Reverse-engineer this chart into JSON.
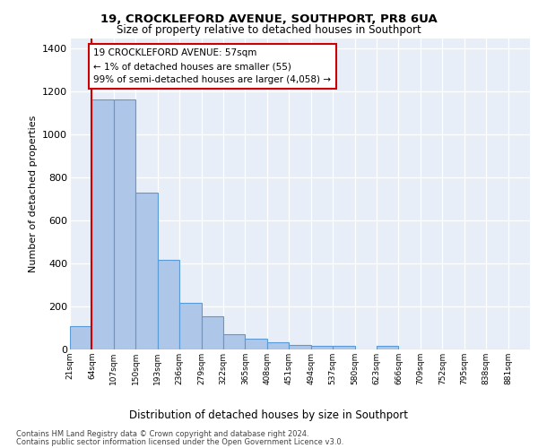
{
  "title1": "19, CROCKLEFORD AVENUE, SOUTHPORT, PR8 6UA",
  "title2": "Size of property relative to detached houses in Southport",
  "xlabel": "Distribution of detached houses by size in Southport",
  "ylabel": "Number of detached properties",
  "footer1": "Contains HM Land Registry data © Crown copyright and database right 2024.",
  "footer2": "Contains public sector information licensed under the Open Government Licence v3.0.",
  "categories": [
    "21sqm",
    "64sqm",
    "107sqm",
    "150sqm",
    "193sqm",
    "236sqm",
    "279sqm",
    "322sqm",
    "365sqm",
    "408sqm",
    "451sqm",
    "494sqm",
    "537sqm",
    "580sqm",
    "623sqm",
    "666sqm",
    "709sqm",
    "752sqm",
    "795sqm",
    "838sqm",
    "881sqm"
  ],
  "bar_heights": [
    107,
    1163,
    1163,
    730,
    418,
    218,
    153,
    73,
    50,
    33,
    20,
    15,
    15,
    0,
    15,
    0,
    0,
    0,
    0,
    0,
    0
  ],
  "annotation_text": "19 CROCKLEFORD AVENUE: 57sqm\n← 1% of detached houses are smaller (55)\n99% of semi-detached houses are larger (4,058) →",
  "bar_color": "#aec6e8",
  "bar_edge_color": "#5b9bd5",
  "annotation_box_color": "#cc0000",
  "vline_x_index": 1,
  "ylim": [
    0,
    1450
  ],
  "yticks": [
    0,
    200,
    400,
    600,
    800,
    1000,
    1200,
    1400
  ],
  "background_color": "#e8eef8"
}
